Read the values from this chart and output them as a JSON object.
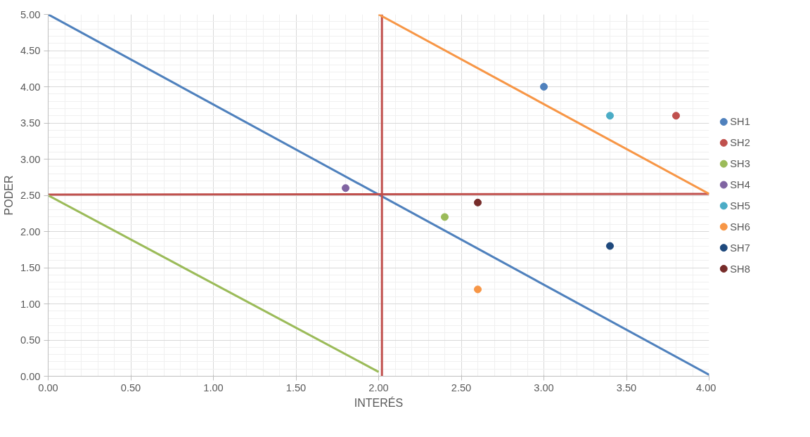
{
  "chart_data": {
    "type": "scatter",
    "xlabel": "INTERÉS",
    "ylabel": "PODER",
    "xlim": [
      0,
      4
    ],
    "ylim": [
      0,
      5
    ],
    "xticks": [
      {
        "value": 0,
        "label": "0.00"
      },
      {
        "value": 0.5,
        "label": "0.50"
      },
      {
        "value": 1,
        "label": "1.00"
      },
      {
        "value": 1.5,
        "label": "1.50"
      },
      {
        "value": 2,
        "label": "2.00"
      },
      {
        "value": 2.5,
        "label": "2.50"
      },
      {
        "value": 3,
        "label": "3.00"
      },
      {
        "value": 3.5,
        "label": "3.50"
      },
      {
        "value": 4,
        "label": "4.00"
      }
    ],
    "yticks": [
      {
        "value": 0,
        "label": "0.00"
      },
      {
        "value": 0.5,
        "label": "0.50"
      },
      {
        "value": 1,
        "label": "1.00"
      },
      {
        "value": 1.5,
        "label": "1.50"
      },
      {
        "value": 2,
        "label": "2.00"
      },
      {
        "value": 2.5,
        "label": "2.50"
      },
      {
        "value": 3,
        "label": "3.00"
      },
      {
        "value": 3.5,
        "label": "3.50"
      },
      {
        "value": 4,
        "label": "4.00"
      },
      {
        "value": 4.5,
        "label": "4.50"
      },
      {
        "value": 5,
        "label": "5.00"
      }
    ],
    "grid": true,
    "legend": "right",
    "marker": "circle",
    "series": [
      {
        "name": "SH1",
        "color": "#4f81bd",
        "x": [
          3.0
        ],
        "values": [
          4.0
        ]
      },
      {
        "name": "SH2",
        "color": "#c0504d",
        "x": [
          3.8
        ],
        "values": [
          3.6
        ]
      },
      {
        "name": "SH3",
        "color": "#9bbb59",
        "x": [
          2.4
        ],
        "values": [
          2.2
        ]
      },
      {
        "name": "SH4",
        "color": "#8064a2",
        "x": [
          1.8
        ],
        "values": [
          2.6
        ]
      },
      {
        "name": "SH5",
        "color": "#4bacc6",
        "x": [
          3.4
        ],
        "values": [
          3.6
        ]
      },
      {
        "name": "SH6",
        "color": "#f79646",
        "x": [
          2.6
        ],
        "values": [
          1.2
        ]
      },
      {
        "name": "SH7",
        "color": "#1f497d",
        "x": [
          3.4
        ],
        "values": [
          1.8
        ]
      },
      {
        "name": "SH8",
        "color": "#772c2a",
        "x": [
          2.6
        ],
        "values": [
          2.4
        ]
      },
      {
        "type": "line",
        "marker": "none",
        "color": "#4f81bd",
        "x": [
          0,
          4.0
        ],
        "values": [
          5.0,
          0.02
        ]
      },
      {
        "type": "line",
        "marker": "none",
        "color": "#c0504d",
        "x": [
          0,
          4.0
        ],
        "values": [
          2.51,
          2.52
        ]
      },
      {
        "type": "line",
        "marker": "none",
        "color": "#c0504d",
        "x": [
          2.02,
          2.02
        ],
        "values": [
          0,
          5.0
        ]
      },
      {
        "type": "line",
        "marker": "none",
        "color": "#9bbb59",
        "x": [
          0,
          2.0
        ],
        "values": [
          2.5,
          0.06
        ]
      },
      {
        "type": "line",
        "marker": "none",
        "color": "#f79646",
        "x": [
          2.0,
          4.0
        ],
        "values": [
          5.0,
          2.52
        ]
      }
    ]
  }
}
